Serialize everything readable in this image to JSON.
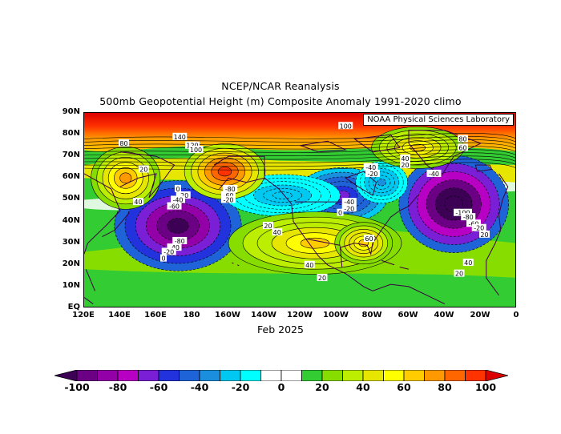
{
  "header": {
    "title_line1": "NCEP/NCAR Reanalysis",
    "title_line2": "500mb Geopotential Height (m) Composite Anomaly 1991-2020 climo"
  },
  "credit": "NOAA Physical Sciences Laboratory",
  "date_label": "Feb 2025",
  "map": {
    "lat_labels": [
      "90N",
      "80N",
      "70N",
      "60N",
      "50N",
      "40N",
      "30N",
      "20N",
      "10N",
      "EQ"
    ],
    "lon_labels": [
      "120E",
      "140E",
      "160E",
      "180",
      "160W",
      "140W",
      "120W",
      "100W",
      "80W",
      "60W",
      "40W",
      "20W",
      "0"
    ],
    "lon_range": [
      120,
      360
    ],
    "lat_range": [
      0,
      90
    ],
    "contour_labels": [
      {
        "text": "100",
        "lon": 265,
        "lat": 84
      },
      {
        "text": "140",
        "lon": 173,
        "lat": 79
      },
      {
        "text": "120",
        "lon": 180,
        "lat": 75
      },
      {
        "text": "100",
        "lon": 182,
        "lat": 73
      },
      {
        "text": "80",
        "lon": 142,
        "lat": 76
      },
      {
        "text": "80",
        "lon": 330,
        "lat": 78
      },
      {
        "text": "60",
        "lon": 330,
        "lat": 74
      },
      {
        "text": "20",
        "lon": 153,
        "lat": 64
      },
      {
        "text": "40",
        "lon": 150,
        "lat": 49
      },
      {
        "text": "0",
        "lon": 172,
        "lat": 55
      },
      {
        "text": "-20",
        "lon": 175,
        "lat": 52
      },
      {
        "text": "-40",
        "lon": 172,
        "lat": 50
      },
      {
        "text": "-60",
        "lon": 170,
        "lat": 47
      },
      {
        "text": "-80",
        "lon": 173,
        "lat": 31
      },
      {
        "text": "-40",
        "lon": 170,
        "lat": 28
      },
      {
        "text": "-20",
        "lon": 167,
        "lat": 26
      },
      {
        "text": "0",
        "lon": 164,
        "lat": 23
      },
      {
        "text": "-80",
        "lon": 201,
        "lat": 55
      },
      {
        "text": "-60",
        "lon": 200,
        "lat": 52
      },
      {
        "text": "-20",
        "lon": 200,
        "lat": 50
      },
      {
        "text": "20",
        "lon": 222,
        "lat": 38
      },
      {
        "text": "40",
        "lon": 227,
        "lat": 35
      },
      {
        "text": "-40",
        "lon": 267,
        "lat": 49
      },
      {
        "text": "-20",
        "lon": 267,
        "lat": 46
      },
      {
        "text": "0",
        "lon": 262,
        "lat": 44
      },
      {
        "text": "60",
        "lon": 278,
        "lat": 32
      },
      {
        "text": "40",
        "lon": 245,
        "lat": 20
      },
      {
        "text": "20",
        "lon": 252,
        "lat": 14
      },
      {
        "text": "-20",
        "lon": 280,
        "lat": 62
      },
      {
        "text": "-40",
        "lon": 279,
        "lat": 65
      },
      {
        "text": "-40",
        "lon": 314,
        "lat": 62
      },
      {
        "text": "40",
        "lon": 298,
        "lat": 69
      },
      {
        "text": "20",
        "lon": 298,
        "lat": 66
      },
      {
        "text": "-100",
        "lon": 330,
        "lat": 44
      },
      {
        "text": "-80",
        "lon": 333,
        "lat": 42
      },
      {
        "text": "-60",
        "lon": 336,
        "lat": 39
      },
      {
        "text": "-20",
        "lon": 339,
        "lat": 37
      },
      {
        "text": "20",
        "lon": 342,
        "lat": 34
      },
      {
        "text": "40",
        "lon": 333,
        "lat": 21
      },
      {
        "text": "20",
        "lon": 328,
        "lat": 16
      }
    ],
    "anomaly_centers": [
      {
        "lon": 172,
        "lat": 38,
        "value": -100,
        "rx": 22,
        "ry": 13
      },
      {
        "lon": 325,
        "lat": 48,
        "value": -110,
        "rx": 19,
        "ry": 14
      },
      {
        "lon": 263,
        "lat": 52,
        "value": -60,
        "rx": 16,
        "ry": 8
      },
      {
        "lon": 285,
        "lat": 58,
        "value": -30,
        "rx": 9,
        "ry": 6
      },
      {
        "lon": 230,
        "lat": 52,
        "value": -25,
        "rx": 20,
        "ry": 6
      },
      {
        "lon": 143,
        "lat": 60,
        "value": 70,
        "rx": 12,
        "ry": 9
      },
      {
        "lon": 198,
        "lat": 63,
        "value": 90,
        "rx": 14,
        "ry": 8
      },
      {
        "lon": 248,
        "lat": 30,
        "value": 55,
        "rx": 30,
        "ry": 9
      },
      {
        "lon": 275,
        "lat": 30,
        "value": 60,
        "rx": 10,
        "ry": 6
      },
      {
        "lon": 305,
        "lat": 74,
        "value": 55,
        "rx": 16,
        "ry": 6
      }
    ]
  },
  "colorbar": {
    "min": -100,
    "max": 100,
    "ticks": [
      "-100",
      "-80",
      "-60",
      "-40",
      "-20",
      "0",
      "20",
      "40",
      "60",
      "80",
      "100"
    ],
    "colors": [
      "#3c0055",
      "#6b0085",
      "#9400a8",
      "#b800c4",
      "#7b1fd6",
      "#2233dd",
      "#1f63d8",
      "#1b8fdd",
      "#00c8f0",
      "#00ffff",
      "#ffffff",
      "#ffffff",
      "#33cc33",
      "#88dd00",
      "#bbee00",
      "#e6e600",
      "#ffff00",
      "#ffcc00",
      "#ff9900",
      "#ff6600",
      "#ff3300",
      "#dd0000"
    ]
  }
}
